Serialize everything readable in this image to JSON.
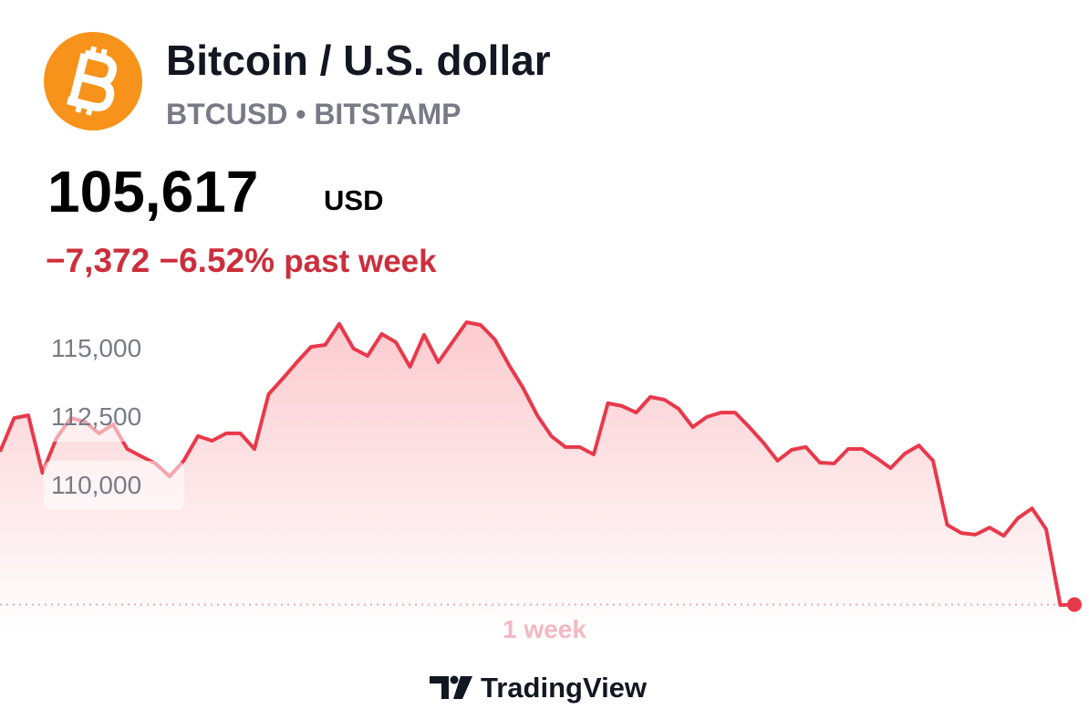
{
  "header": {
    "title": "Bitcoin / U.S. dollar",
    "subtitle": "BTCUSD • BITSTAMP",
    "price": "105,617",
    "currency": "USD",
    "change": "−7,372",
    "change_percent": "−6.52%",
    "period": "past week"
  },
  "chart_data": {
    "type": "line",
    "x_label": "1 week",
    "color": "#e8394b",
    "values": [
      111200,
      112430,
      112530,
      110430,
      111700,
      112430,
      112300,
      111870,
      112200,
      111300,
      111030,
      110770,
      110300,
      110870,
      111770,
      111600,
      111870,
      111870,
      111300,
      113300,
      113870,
      114470,
      115030,
      115100,
      115870,
      114970,
      114700,
      115500,
      115200,
      114300,
      115470,
      114470,
      115200,
      115930,
      115830,
      115300,
      114370,
      113530,
      112530,
      111770,
      111370,
      111370,
      111100,
      112970,
      112870,
      112630,
      113200,
      113100,
      112770,
      112100,
      112470,
      112630,
      112630,
      112100,
      111530,
      110870,
      111270,
      111370,
      110800,
      110770,
      111300,
      111300,
      110970,
      110600,
      111130,
      111430,
      110870,
      108530,
      108230,
      108170,
      108430,
      108130,
      108770,
      109130,
      108370,
      105600,
      105617
    ],
    "ylim": [
      104500,
      116500
    ],
    "yticks": [
      {
        "value": 110000,
        "label": "110,000"
      },
      {
        "value": 112500,
        "label": "112,500"
      },
      {
        "value": 115000,
        "label": "115,000"
      }
    ]
  },
  "footer": {
    "brand": "TradingView"
  }
}
